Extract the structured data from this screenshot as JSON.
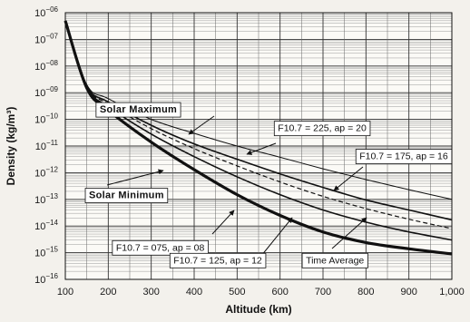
{
  "chart_data": {
    "type": "line",
    "xlabel": "Altitude (km)",
    "ylabel": "Density (kg/m³)",
    "x_ticks": [
      100,
      200,
      300,
      400,
      500,
      600,
      700,
      800,
      900,
      1000
    ],
    "x_tick_labels": [
      "100",
      "200",
      "300",
      "400",
      "500",
      "600",
      "700",
      "800",
      "900",
      "1,000"
    ],
    "y_log": true,
    "y_ticks": [
      1e-06,
      1e-07,
      1e-08,
      1e-09,
      1e-10,
      1e-11,
      1e-12,
      1e-13,
      1e-14,
      1e-15,
      1e-16
    ],
    "y_tick_labels": [
      {
        "base": "10",
        "exp": "−06"
      },
      {
        "base": "10",
        "exp": "−07"
      },
      {
        "base": "10",
        "exp": "−08"
      },
      {
        "base": "10",
        "exp": "−09"
      },
      {
        "base": "10",
        "exp": "−10"
      },
      {
        "base": "10",
        "exp": "−11"
      },
      {
        "base": "10",
        "exp": "−12"
      },
      {
        "base": "10",
        "exp": "−13"
      },
      {
        "base": "10",
        "exp": "−14"
      },
      {
        "base": "10",
        "exp": "−15"
      },
      {
        "base": "10",
        "exp": "−16"
      }
    ],
    "xlim": [
      100,
      1000
    ],
    "ylim": [
      1e-16,
      1e-06
    ],
    "grid": true,
    "series": [
      {
        "name": "F10.7 = 225, ap = 20",
        "style": "thin",
        "x": [
          100,
          150,
          200,
          300,
          400,
          500,
          600,
          700,
          800,
          900,
          1000
        ],
        "y": [
          5e-07,
          2e-09,
          6e-10,
          1e-10,
          3e-11,
          1e-11,
          3.8e-12,
          1.4e-12,
          5.5e-13,
          2.3e-13,
          1e-13
        ]
      },
      {
        "name": "F10.7 = 175, ap = 16",
        "style": "medium",
        "x": [
          100,
          150,
          200,
          300,
          400,
          500,
          600,
          700,
          800,
          900,
          1000
        ],
        "y": [
          5e-07,
          1.8e-09,
          4.5e-10,
          6e-11,
          1.2e-11,
          3.2e-12,
          9e-13,
          2.8e-13,
          9.5e-14,
          4e-14,
          1.7e-14
        ]
      },
      {
        "name": "Time Average",
        "style": "dashed",
        "x": [
          100,
          150,
          200,
          300,
          400,
          500,
          600,
          700,
          800,
          900,
          1000
        ],
        "y": [
          5e-07,
          1.7e-09,
          3.8e-10,
          4.5e-11,
          8e-12,
          1.8e-12,
          4.5e-13,
          1.3e-13,
          4.5e-14,
          1.8e-14,
          8e-15
        ]
      },
      {
        "name": "F10.7 = 125, ap = 12",
        "style": "medium",
        "x": [
          100,
          150,
          200,
          300,
          400,
          500,
          600,
          700,
          800,
          900,
          1000
        ],
        "y": [
          5e-07,
          1.6e-09,
          3e-10,
          2.8e-11,
          4e-12,
          7e-13,
          1.5e-13,
          4e-14,
          1.4e-14,
          6e-15,
          3e-15
        ]
      },
      {
        "name": "F10.7 = 075, ap = 08",
        "style": "thick",
        "x": [
          100,
          150,
          200,
          300,
          400,
          500,
          600,
          700,
          800,
          900,
          1000
        ],
        "y": [
          5e-07,
          1.5e-09,
          2.2e-10,
          1.4e-11,
          1.3e-12,
          1.5e-13,
          2.5e-14,
          6e-15,
          2.4e-15,
          1.4e-15,
          9e-16
        ]
      }
    ],
    "annotations": [
      {
        "id": "solar-max",
        "text": "Solar Maximum",
        "boxed": true,
        "bold": true,
        "x": 180,
        "y": 1.8e-10
      },
      {
        "id": "solar-min",
        "text": "Solar Minimum",
        "boxed": true,
        "bold": true,
        "x": 155,
        "y": 1.1e-13
      },
      {
        "id": "f225",
        "text": "F10.7 = 225, ap = 20",
        "boxed": true,
        "bold": false,
        "x": 595,
        "y": 3.6e-11
      },
      {
        "id": "f175",
        "text": "F10.7 = 175, ap = 16",
        "boxed": true,
        "bold": false,
        "x": 785,
        "y": 3.2e-12
      },
      {
        "id": "f075",
        "text": "F10.7 = 075, ap = 08",
        "boxed": true,
        "bold": false,
        "x": 218,
        "y": 1.2e-15
      },
      {
        "id": "f125",
        "text": "F10.7 = 125, ap = 12",
        "boxed": true,
        "bold": false,
        "x": 352,
        "y": 4e-16
      },
      {
        "id": "timeavg",
        "text": "Time Average",
        "boxed": true,
        "bold": false,
        "x": 660,
        "y": 4e-16
      }
    ]
  }
}
